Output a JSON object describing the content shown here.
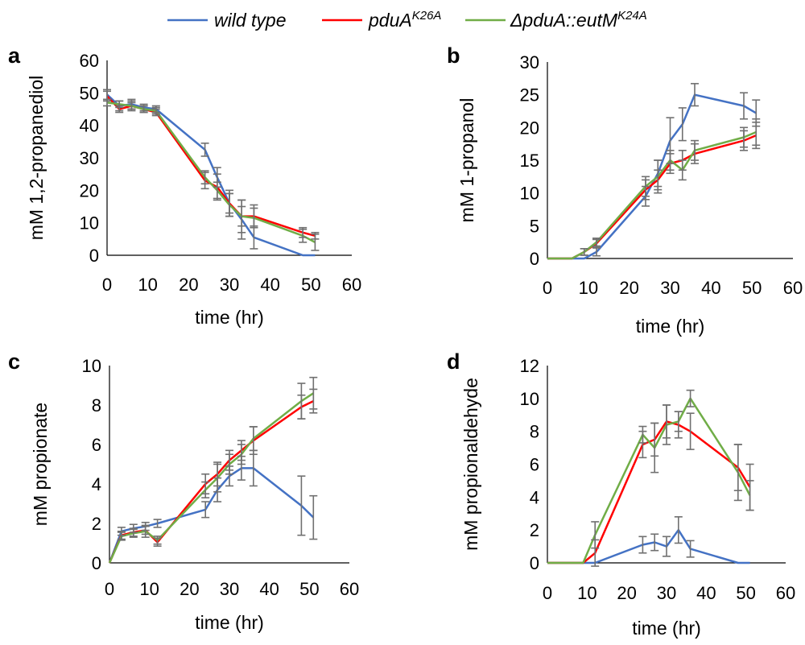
{
  "legend": {
    "items": [
      {
        "name": "wild type",
        "name_sup": "",
        "color": "#4472C4"
      },
      {
        "name": "pduA",
        "name_sup": "K26A",
        "color": "#FF0000"
      },
      {
        "name": "ΔpduA::eutM",
        "name_sup": "K24A",
        "color": "#70AD47"
      }
    ]
  },
  "chart_data": [
    {
      "panel": "a",
      "type": "line",
      "xlabel": "time (hr)",
      "ylabel": "mM 1,2-propanediol",
      "xlim": [
        0,
        60
      ],
      "ylim": [
        0,
        60
      ],
      "xticks": [
        0,
        10,
        20,
        30,
        40,
        50,
        60
      ],
      "yticks": [
        0,
        10,
        20,
        30,
        40,
        50,
        60
      ],
      "series": [
        {
          "name": "wild type",
          "color": "#4472C4",
          "x": [
            0,
            3,
            6,
            9,
            12,
            24,
            27,
            30,
            33,
            36,
            48,
            51
          ],
          "y": [
            49.5,
            46,
            46.5,
            45.5,
            45,
            32.5,
            24,
            16,
            11,
            5.5,
            0,
            0
          ],
          "err": [
            1.5,
            1.5,
            1.5,
            1.0,
            1.0,
            2.0,
            3.0,
            3.0,
            6.0,
            3.5,
            0,
            0
          ]
        },
        {
          "name": "pduA K26A",
          "color": "#FF0000",
          "x": [
            0,
            3,
            6,
            9,
            12,
            24,
            27,
            30,
            33,
            36,
            48,
            51
          ],
          "y": [
            49,
            45,
            46,
            45,
            44,
            23,
            21,
            16,
            12,
            12,
            7,
            6
          ],
          "err": [
            1.5,
            1.0,
            1.5,
            1.0,
            1.0,
            2.5,
            4.0,
            4.0,
            5.0,
            3.5,
            1.5,
            1.0
          ]
        },
        {
          "name": "ΔpduA::eutM K24A",
          "color": "#70AD47",
          "x": [
            0,
            3,
            6,
            9,
            12,
            24,
            27,
            30,
            33,
            36,
            48,
            51
          ],
          "y": [
            47,
            46.5,
            46,
            45,
            44.5,
            24,
            20,
            15.5,
            12,
            11.5,
            6,
            4
          ],
          "err": [
            1.0,
            1.0,
            1.0,
            1.0,
            1.0,
            2.0,
            2.5,
            3.5,
            3.0,
            3.0,
            2.0,
            2.5
          ]
        }
      ]
    },
    {
      "panel": "b",
      "type": "line",
      "xlabel": "time (hr)",
      "ylabel": "mM 1-propanol",
      "xlim": [
        0,
        60
      ],
      "ylim": [
        0,
        30
      ],
      "xticks": [
        0,
        10,
        20,
        30,
        40,
        50,
        60
      ],
      "yticks": [
        0,
        5,
        10,
        15,
        20,
        25,
        30
      ],
      "series": [
        {
          "name": "wild type",
          "color": "#4472C4",
          "x": [
            0,
            6,
            9,
            12,
            24,
            27,
            30,
            33,
            36,
            48,
            51
          ],
          "y": [
            0,
            0,
            0,
            1,
            9.5,
            13,
            18,
            20.5,
            25,
            23.3,
            22.2
          ],
          "err": [
            0,
            0,
            0,
            0.6,
            1.5,
            2.0,
            3.5,
            2.5,
            1.7,
            2.0,
            2.0
          ]
        },
        {
          "name": "pduA K26A",
          "color": "#FF0000",
          "x": [
            0,
            6,
            9,
            12,
            24,
            27,
            30,
            33,
            36,
            48,
            51
          ],
          "y": [
            0,
            0,
            1,
            2.3,
            10.5,
            12,
            14.5,
            15,
            16,
            18,
            18.8
          ],
          "err": [
            0,
            0,
            0.5,
            0.6,
            1.5,
            1.5,
            1.5,
            1.5,
            1.5,
            1.5,
            2.0
          ]
        },
        {
          "name": "ΔpduA::eutM K24A",
          "color": "#70AD47",
          "x": [
            0,
            6,
            9,
            12,
            24,
            27,
            30,
            33,
            36,
            48,
            51
          ],
          "y": [
            0,
            0,
            1,
            2.5,
            11,
            12.5,
            15,
            13.5,
            16.5,
            18.5,
            19.3
          ],
          "err": [
            0,
            0,
            0.5,
            0.6,
            1.5,
            2.5,
            1.5,
            1.5,
            1.5,
            1.5,
            2.0
          ]
        }
      ]
    },
    {
      "panel": "c",
      "type": "line",
      "xlabel": "time (hr)",
      "ylabel": "mM propionate",
      "xlim": [
        0,
        60
      ],
      "ylim": [
        0,
        10
      ],
      "xticks": [
        0,
        10,
        20,
        30,
        40,
        50,
        60
      ],
      "yticks": [
        0,
        2,
        4,
        6,
        8,
        10
      ],
      "series": [
        {
          "name": "wild type",
          "color": "#4472C4",
          "x": [
            0,
            3,
            6,
            9,
            12,
            24,
            27,
            30,
            33,
            36,
            48,
            51
          ],
          "y": [
            0,
            1.6,
            1.75,
            1.85,
            2.0,
            2.7,
            3.7,
            4.4,
            4.8,
            4.8,
            2.9,
            2.3
          ],
          "err": [
            0,
            0.2,
            0.2,
            0.2,
            0.2,
            0.4,
            0.6,
            0.5,
            0.6,
            0.9,
            1.5,
            1.1
          ]
        },
        {
          "name": "pduA K26A",
          "color": "#FF0000",
          "x": [
            0,
            3,
            6,
            9,
            12,
            24,
            27,
            30,
            33,
            36,
            48,
            51
          ],
          "y": [
            0,
            1.4,
            1.55,
            1.65,
            1.05,
            4.0,
            4.5,
            5.2,
            5.7,
            6.2,
            7.9,
            8.2
          ],
          "err": [
            0,
            0.2,
            0.2,
            0.2,
            0.2,
            0.5,
            0.6,
            0.5,
            0.5,
            0.7,
            0.6,
            0.6
          ]
        },
        {
          "name": "ΔpduA::eutM K24A",
          "color": "#70AD47",
          "x": [
            0,
            3,
            6,
            9,
            12,
            24,
            27,
            30,
            33,
            36,
            48,
            51
          ],
          "y": [
            0,
            1.35,
            1.5,
            1.6,
            1.15,
            3.7,
            4.3,
            5.0,
            5.5,
            6.3,
            8.2,
            8.6
          ],
          "err": [
            0,
            0.2,
            0.2,
            0.3,
            0.2,
            0.4,
            0.7,
            0.5,
            0.5,
            0.6,
            0.9,
            0.8
          ]
        }
      ]
    },
    {
      "panel": "d",
      "type": "line",
      "xlabel": "time (hr)",
      "ylabel": "mM propionaldehyde",
      "xlim": [
        0,
        60
      ],
      "ylim": [
        0,
        12
      ],
      "xticks": [
        0,
        10,
        20,
        30,
        40,
        50,
        60
      ],
      "yticks": [
        0,
        2,
        4,
        6,
        8,
        10,
        12
      ],
      "series": [
        {
          "name": "wild type",
          "color": "#4472C4",
          "x": [
            0,
            6,
            9,
            12,
            24,
            27,
            30,
            33,
            36,
            48,
            51
          ],
          "y": [
            0,
            0,
            0,
            0,
            1.1,
            1.25,
            1.0,
            2.0,
            0.85,
            0,
            0
          ],
          "err": [
            0,
            0,
            0,
            0,
            0.5,
            0.5,
            0.6,
            0.8,
            0.5,
            0,
            0
          ]
        },
        {
          "name": "pduA K26A",
          "color": "#FF0000",
          "x": [
            0,
            6,
            9,
            12,
            24,
            27,
            30,
            33,
            36,
            48,
            51
          ],
          "y": [
            0,
            0,
            0,
            0.6,
            7.2,
            7.5,
            8.6,
            8.4,
            8.0,
            5.8,
            4.6
          ],
          "err": [
            0,
            0,
            0,
            0.8,
            0.8,
            1.0,
            1.0,
            0.8,
            1.1,
            1.4,
            1.4
          ]
        },
        {
          "name": "ΔpduA::eutM K24A",
          "color": "#70AD47",
          "x": [
            0,
            6,
            9,
            12,
            24,
            27,
            30,
            33,
            36,
            48,
            51
          ],
          "y": [
            0,
            0,
            0,
            1.7,
            7.8,
            7.0,
            8.4,
            8.6,
            10.0,
            5.5,
            4.1
          ],
          "err": [
            0,
            0,
            0,
            0.8,
            0.5,
            1.5,
            1.2,
            0.6,
            0.5,
            1.7,
            0.9
          ]
        }
      ]
    }
  ]
}
